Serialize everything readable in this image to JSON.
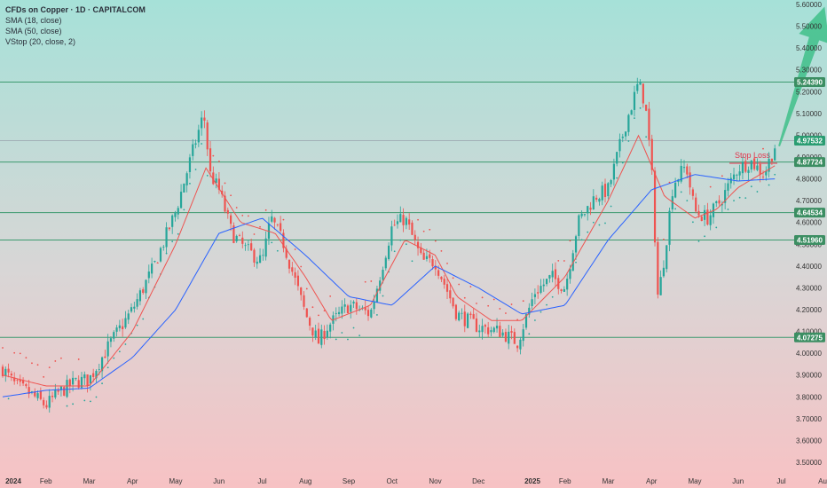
{
  "header": {
    "title": "CFDs on Copper · 1D · CAPITALCOM",
    "indicators": [
      "SMA (18, close)",
      "SMA (50, close)",
      "VStop (20, close, 2)"
    ]
  },
  "chart_data": {
    "type": "candlestick",
    "symbol": "CFDs on Copper",
    "interval": "1D",
    "source": "CAPITALCOM",
    "x_ticks": [
      "2024",
      "Feb",
      "Mar",
      "Apr",
      "May",
      "Jun",
      "Jul",
      "Aug",
      "Sep",
      "Oct",
      "Nov",
      "Dec",
      "2025",
      "Feb",
      "Mar",
      "Apr",
      "May",
      "Jun",
      "Jul",
      "Aug"
    ],
    "y_ticks": [
      "5.60000",
      "5.50000",
      "5.40000",
      "5.30000",
      "5.20000",
      "5.10000",
      "5.00000",
      "4.90000",
      "4.80000",
      "4.70000",
      "4.60000",
      "4.50000",
      "4.40000",
      "4.30000",
      "4.20000",
      "4.10000",
      "4.00000",
      "3.90000",
      "3.80000",
      "3.70000",
      "3.60000",
      "3.50000"
    ],
    "ylim": [
      3.5,
      5.6
    ],
    "horizontal_levels": [
      {
        "label": "5.24390",
        "value": 5.2439,
        "color": "#3d9a6f"
      },
      {
        "label": "4.97532",
        "value": 4.97532,
        "color": "#9aa3ad"
      },
      {
        "label": "4.87724",
        "value": 4.87724,
        "color": "#3d9a6f"
      },
      {
        "label": "4.64534",
        "value": 4.64534,
        "color": "#3d9a6f"
      },
      {
        "label": "4.51960",
        "value": 4.5196,
        "color": "#3d9a6f"
      },
      {
        "label": "4.07275",
        "value": 4.07275,
        "color": "#3d9a6f"
      }
    ],
    "stop_loss": {
      "label": "Stop Loss",
      "value": 4.9,
      "color": "#e2334b"
    },
    "projection_arrow": {
      "from": {
        "month_index": 17.95,
        "value": 4.95
      },
      "to": {
        "month_index": 19.0,
        "value": 5.59
      },
      "color": "#3fbf8a"
    },
    "price_anchors": [
      {
        "m": 0.0,
        "v": 3.93
      },
      {
        "m": 0.3,
        "v": 3.85
      },
      {
        "m": 0.6,
        "v": 3.82
      },
      {
        "m": 1.0,
        "v": 3.76
      },
      {
        "m": 1.3,
        "v": 3.82
      },
      {
        "m": 1.7,
        "v": 3.87
      },
      {
        "m": 2.0,
        "v": 3.88
      },
      {
        "m": 2.5,
        "v": 4.05
      },
      {
        "m": 3.0,
        "v": 4.2
      },
      {
        "m": 3.5,
        "v": 4.4
      },
      {
        "m": 4.0,
        "v": 4.65
      },
      {
        "m": 4.5,
        "v": 5.0
      },
      {
        "m": 4.65,
        "v": 5.1
      },
      {
        "m": 4.8,
        "v": 4.82
      },
      {
        "m": 5.0,
        "v": 4.75
      },
      {
        "m": 5.3,
        "v": 4.55
      },
      {
        "m": 5.6,
        "v": 4.48
      },
      {
        "m": 6.0,
        "v": 4.42
      },
      {
        "m": 6.2,
        "v": 4.62
      },
      {
        "m": 6.5,
        "v": 4.5
      },
      {
        "m": 7.0,
        "v": 4.18
      },
      {
        "m": 7.3,
        "v": 4.05
      },
      {
        "m": 7.5,
        "v": 4.12
      },
      {
        "m": 8.0,
        "v": 4.22
      },
      {
        "m": 8.5,
        "v": 4.18
      },
      {
        "m": 9.0,
        "v": 4.58
      },
      {
        "m": 9.3,
        "v": 4.62
      },
      {
        "m": 9.7,
        "v": 4.42
      },
      {
        "m": 10.0,
        "v": 4.42
      },
      {
        "m": 10.5,
        "v": 4.18
      },
      {
        "m": 11.0,
        "v": 4.12
      },
      {
        "m": 11.5,
        "v": 4.1
      },
      {
        "m": 11.9,
        "v": 4.05
      },
      {
        "m": 12.3,
        "v": 4.28
      },
      {
        "m": 12.7,
        "v": 4.35
      },
      {
        "m": 13.0,
        "v": 4.3
      },
      {
        "m": 13.3,
        "v": 4.6
      },
      {
        "m": 13.7,
        "v": 4.72
      },
      {
        "m": 14.0,
        "v": 4.75
      },
      {
        "m": 14.4,
        "v": 5.05
      },
      {
        "m": 14.7,
        "v": 5.24
      },
      {
        "m": 14.85,
        "v": 5.15
      },
      {
        "m": 15.0,
        "v": 4.85
      },
      {
        "m": 15.15,
        "v": 4.25
      },
      {
        "m": 15.3,
        "v": 4.45
      },
      {
        "m": 15.5,
        "v": 4.78
      },
      {
        "m": 15.8,
        "v": 4.86
      },
      {
        "m": 16.0,
        "v": 4.65
      },
      {
        "m": 16.3,
        "v": 4.62
      },
      {
        "m": 16.6,
        "v": 4.7
      },
      {
        "m": 17.0,
        "v": 4.85
      },
      {
        "m": 17.3,
        "v": 4.88
      },
      {
        "m": 17.6,
        "v": 4.82
      },
      {
        "m": 17.85,
        "v": 4.95
      }
    ],
    "sma18_anchors": [
      {
        "m": 0.0,
        "v": 3.9
      },
      {
        "m": 1.0,
        "v": 3.85
      },
      {
        "m": 2.0,
        "v": 3.85
      },
      {
        "m": 3.0,
        "v": 4.1
      },
      {
        "m": 4.0,
        "v": 4.5
      },
      {
        "m": 4.7,
        "v": 4.85
      },
      {
        "m": 5.5,
        "v": 4.6
      },
      {
        "m": 6.3,
        "v": 4.55
      },
      {
        "m": 7.0,
        "v": 4.35
      },
      {
        "m": 7.6,
        "v": 4.15
      },
      {
        "m": 8.5,
        "v": 4.22
      },
      {
        "m": 9.3,
        "v": 4.52
      },
      {
        "m": 10.0,
        "v": 4.45
      },
      {
        "m": 10.5,
        "v": 4.26
      },
      {
        "m": 11.3,
        "v": 4.15
      },
      {
        "m": 12.0,
        "v": 4.15
      },
      {
        "m": 13.0,
        "v": 4.35
      },
      {
        "m": 14.0,
        "v": 4.7
      },
      {
        "m": 14.7,
        "v": 5.0
      },
      {
        "m": 15.3,
        "v": 4.72
      },
      {
        "m": 16.0,
        "v": 4.62
      },
      {
        "m": 16.5,
        "v": 4.66
      },
      {
        "m": 17.0,
        "v": 4.76
      },
      {
        "m": 17.85,
        "v": 4.86
      }
    ],
    "sma50_anchors": [
      {
        "m": 0.0,
        "v": 3.8
      },
      {
        "m": 1.0,
        "v": 3.83
      },
      {
        "m": 2.0,
        "v": 3.84
      },
      {
        "m": 3.0,
        "v": 3.98
      },
      {
        "m": 4.0,
        "v": 4.2
      },
      {
        "m": 5.0,
        "v": 4.55
      },
      {
        "m": 6.0,
        "v": 4.62
      },
      {
        "m": 7.0,
        "v": 4.45
      },
      {
        "m": 8.0,
        "v": 4.26
      },
      {
        "m": 9.0,
        "v": 4.22
      },
      {
        "m": 10.0,
        "v": 4.4
      },
      {
        "m": 11.0,
        "v": 4.3
      },
      {
        "m": 12.0,
        "v": 4.18
      },
      {
        "m": 13.0,
        "v": 4.22
      },
      {
        "m": 14.0,
        "v": 4.52
      },
      {
        "m": 15.0,
        "v": 4.75
      },
      {
        "m": 16.0,
        "v": 4.82
      },
      {
        "m": 17.0,
        "v": 4.79
      },
      {
        "m": 17.85,
        "v": 4.8
      }
    ]
  },
  "colors": {
    "up": "#26a69a",
    "down": "#ef5350",
    "sma18": "#ef5350",
    "sma50": "#2962ff",
    "level": "#3d9a6f",
    "bg_top": "#a6e1d8",
    "bg_bottom": "#f7c6c7"
  }
}
